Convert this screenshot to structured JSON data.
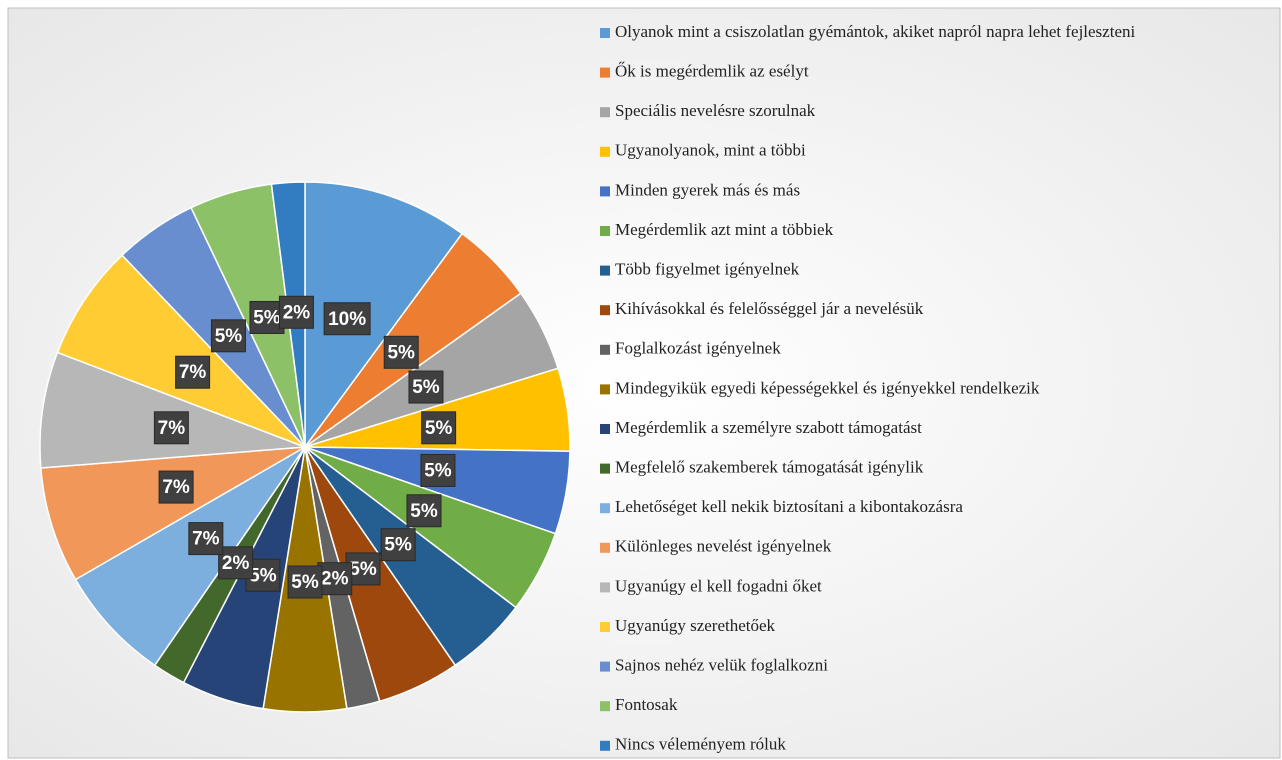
{
  "chart_data": {
    "type": "pie",
    "categories": [
      "Olyanok mint a csiszolatlan gyémántok, akiket napról napra lehet fejleszteni",
      "Ők is megérdemlik az esélyt",
      "Speciális nevelésre szorulnak",
      "Ugyanolyanok, mint a többi",
      "Minden gyerek más és más",
      "Megérdemlik azt mint a többiek",
      "Több figyelmet igényelnek",
      "Kihívásokkal és felelősséggel jár a nevelésük",
      "Foglalkozást igényelnek",
      "Mindegyikük egyedi képességekkel és igényekkel rendelkezik",
      "Megérdemlik a személyre szabott támogatást",
      "Megfelelő szakemberek támogatását igénylik",
      "Lehetőséget kell nekik biztosítani a kibontakozásra",
      "Különleges nevelést igényelnek",
      "Ugyanúgy el kell fogadni őket",
      "Ugyanúgy szerethetőek",
      "Sajnos nehéz velük foglalkozni",
      "Fontosak",
      "Nincs véleményem róluk"
    ],
    "values": [
      10,
      5,
      5,
      5,
      5,
      5,
      5,
      5,
      2,
      5,
      5,
      2,
      7,
      7,
      7,
      7,
      5,
      5,
      2
    ],
    "value_labels": [
      "10%",
      "5%",
      "5%",
      "5%",
      "5%",
      "5%",
      "5%",
      "5%",
      "2%",
      "5%",
      "5%",
      "2%",
      "7%",
      "7%",
      "7%",
      "7%",
      "5%",
      "5%",
      "2%"
    ],
    "colors": [
      "#5b9bd5",
      "#ed7d31",
      "#a5a5a5",
      "#ffc000",
      "#4472c4",
      "#70ad47",
      "#255e91",
      "#9e480e",
      "#636363",
      "#997300",
      "#264478",
      "#43682b",
      "#7cafdd",
      "#f1975a",
      "#b7b7b7",
      "#ffcd33",
      "#698ed0",
      "#8cc168",
      "#327dc2"
    ],
    "legend": "right"
  }
}
